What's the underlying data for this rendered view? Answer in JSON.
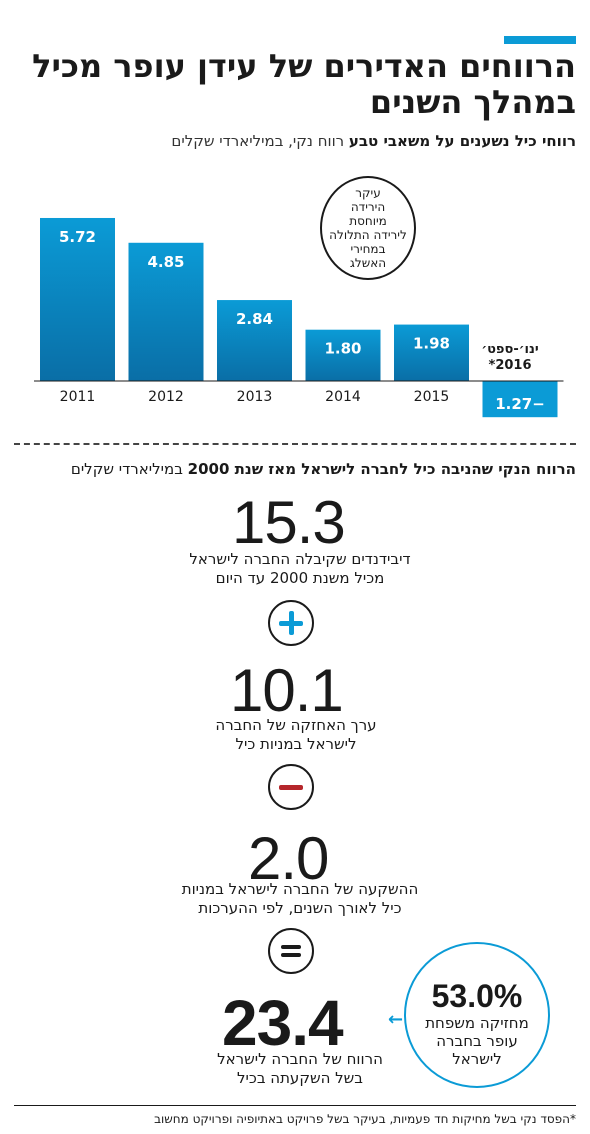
{
  "title": "הרווחים האדירים של עידן עופר מכיל במהלך השנים",
  "chart_subtitle_bold": "רווחי כיל נשענים על משאבי טבע",
  "chart_subtitle_light": "רווח נקי, במיליארדי שקלים",
  "bubble_note": "עיקר\nהירידה\nמיוחסת\nלירידה התלולה\nבמחירי\nהאשלג",
  "period_2016_label": "ינו׳-ספט׳\n2016*",
  "chart_data": {
    "type": "bar",
    "categories": [
      "2011",
      "2012",
      "2013",
      "2014",
      "2015",
      ""
    ],
    "values": [
      5.72,
      4.85,
      2.84,
      1.8,
      1.98,
      -1.27
    ],
    "value_labels": [
      "5.72",
      "4.85",
      "2.84",
      "1.80",
      "1.98",
      "−1.27"
    ],
    "ylim": [
      -1.6,
      6.2
    ],
    "grid": false,
    "bar_color_top": "#0b9bd6",
    "bar_color_bottom": "#0a6ea6"
  },
  "section_title_bold": "הרווח הנקי שהניבה כיל לחברה לישראל מאז שנת 2000",
  "section_title_light": "במיליארדי שקלים",
  "items": [
    {
      "value": "15.3",
      "desc": "דיבידנדים שקיבלה החברה לישראל\nמכיל משנת 2000 עד היום"
    },
    {
      "value": "10.1",
      "desc": "ערך האחזקה של החברה\nלישראל במניות כיל"
    },
    {
      "value": "2.0",
      "desc": "ההשקעה של החברה לישראל במניות\nכיל לאורך השנים, לפי ההערכות"
    },
    {
      "value": "23.4",
      "desc": "הרווח של החברה לישראל\nבשל השקעתה בכיל"
    }
  ],
  "operators": [
    "plus-icon",
    "minus-icon",
    "equals-icon"
  ],
  "colors": {
    "accent": "#0b9bd6",
    "minus": "#b5262b"
  },
  "share": {
    "pct": "53.0%",
    "text": "מחזיקה משפחת\nעופר בחברה\nלישראל"
  },
  "footnote": "*הפסד נקי בשל מחיקות חד פעמיות, בעיקר בשל פרויקט באתיופיה ופרויקט מחשוב"
}
